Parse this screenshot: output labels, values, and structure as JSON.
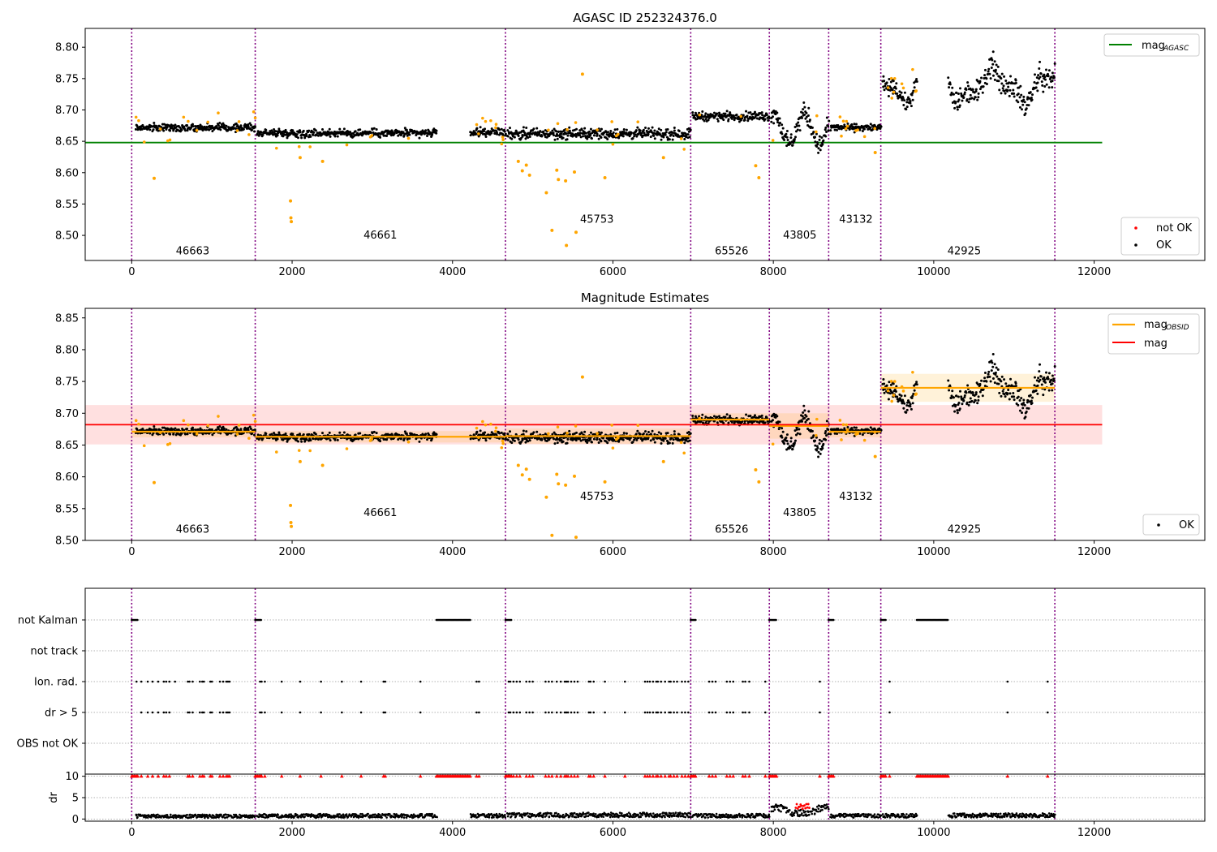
{
  "chart_data": [
    {
      "type": "scatter",
      "title": "AGASC ID 252324376.0",
      "xlim": [
        -580,
        13380
      ],
      "ylim": [
        8.46,
        8.83
      ],
      "xticks": [
        0,
        2000,
        4000,
        6000,
        8000,
        10000,
        12000
      ],
      "yticks": [
        "8.80",
        "8.75",
        "8.70",
        "8.65",
        "8.60",
        "8.55",
        "8.50"
      ],
      "obsid_boundaries": [
        0,
        1540,
        4660,
        6970,
        7950,
        8690,
        9340,
        11510
      ],
      "obsids": [
        {
          "id": "46663",
          "x": 760,
          "y": 8.47
        },
        {
          "id": "46661",
          "x": 3100,
          "y": 8.495
        },
        {
          "id": "45753",
          "x": 5800,
          "y": 8.52
        },
        {
          "id": "65526",
          "x": 7480,
          "y": 8.47
        },
        {
          "id": "43805",
          "x": 8330,
          "y": 8.495
        },
        {
          "id": "43132",
          "x": 9030,
          "y": 8.52
        },
        {
          "id": "42925",
          "x": 10380,
          "y": 8.47
        }
      ],
      "mag_agasc": {
        "value": 8.648,
        "x": [
          -580,
          12100
        ],
        "color": "#008000"
      },
      "obs_segments": [
        {
          "x": [
            50,
            1540
          ],
          "level": 8.672,
          "amp": 0.008
        },
        {
          "x": [
            1560,
            3800
          ],
          "level": 8.663,
          "amp": 0.009
        },
        {
          "x": [
            4220,
            4660
          ],
          "level": 8.665,
          "amp": 0.009
        },
        {
          "x": [
            4680,
            6970
          ],
          "level": 8.662,
          "amp": 0.012
        },
        {
          "x": [
            6990,
            7950
          ],
          "level": 8.69,
          "amp": 0.01
        },
        {
          "x": [
            7970,
            8690
          ],
          "level": 8.675,
          "amp": 0.022
        },
        {
          "x": [
            8710,
            9340
          ],
          "level": 8.672,
          "amp": 0.008
        },
        {
          "x": [
            9360,
            9790
          ],
          "level": 8.74,
          "amp": 0.018
        },
        {
          "x": [
            10180,
            11510
          ],
          "level": 8.74,
          "amp": 0.028
        }
      ],
      "outliers": [
        {
          "x": 280,
          "y": 8.591
        },
        {
          "x": 1980,
          "y": 8.555
        },
        {
          "x": 1985,
          "y": 8.528
        },
        {
          "x": 1990,
          "y": 8.522
        },
        {
          "x": 2100,
          "y": 8.624
        },
        {
          "x": 2380,
          "y": 8.618
        },
        {
          "x": 4820,
          "y": 8.618
        },
        {
          "x": 4870,
          "y": 8.603
        },
        {
          "x": 4920,
          "y": 8.612
        },
        {
          "x": 4960,
          "y": 8.596
        },
        {
          "x": 5170,
          "y": 8.568
        },
        {
          "x": 5240,
          "y": 8.508
        },
        {
          "x": 5300,
          "y": 8.604
        },
        {
          "x": 5320,
          "y": 8.589
        },
        {
          "x": 5410,
          "y": 8.587
        },
        {
          "x": 5420,
          "y": 8.484
        },
        {
          "x": 5520,
          "y": 8.601
        },
        {
          "x": 5540,
          "y": 8.505
        },
        {
          "x": 5620,
          "y": 8.757
        },
        {
          "x": 5900,
          "y": 8.592
        },
        {
          "x": 6630,
          "y": 8.624
        },
        {
          "x": 7780,
          "y": 8.611
        },
        {
          "x": 7820,
          "y": 8.592
        },
        {
          "x": 9270,
          "y": 8.632
        }
      ],
      "legend_upper": [
        {
          "label": "mag",
          "sub": "AGASC",
          "color": "#008000"
        }
      ],
      "legend_lower": [
        {
          "label": "not OK",
          "color": "#ff0000"
        },
        {
          "label": "OK",
          "color": "#000000"
        }
      ]
    },
    {
      "type": "scatter",
      "title": "Magnitude Estimates",
      "xlim": [
        -580,
        13380
      ],
      "ylim": [
        8.5,
        8.865
      ],
      "xticks": [
        0,
        2000,
        4000,
        6000,
        8000,
        10000,
        12000
      ],
      "yticks": [
        "8.85",
        "8.80",
        "8.75",
        "8.70",
        "8.65",
        "8.60",
        "8.55",
        "8.50"
      ],
      "obsids": [
        {
          "id": "46663",
          "x": 760,
          "y": 8.512
        },
        {
          "id": "46661",
          "x": 3100,
          "y": 8.538
        },
        {
          "id": "45753",
          "x": 5800,
          "y": 8.564
        },
        {
          "id": "65526",
          "x": 7480,
          "y": 8.512
        },
        {
          "id": "43805",
          "x": 8330,
          "y": 8.538
        },
        {
          "id": "43132",
          "x": 9030,
          "y": 8.564
        },
        {
          "id": "42925",
          "x": 10380,
          "y": 8.512
        }
      ],
      "mag": {
        "value": 8.682,
        "band": [
          8.651,
          8.713
        ],
        "x": [
          -580,
          12100
        ],
        "color": "#ff0000"
      },
      "mag_obsid": [
        {
          "x": [
            0,
            1540
          ],
          "value": 8.671,
          "band": [
            8.662,
            8.68
          ]
        },
        {
          "x": [
            1540,
            4660
          ],
          "value": 8.663,
          "band": [
            8.654,
            8.672
          ]
        },
        {
          "x": [
            4660,
            6970
          ],
          "value": 8.664,
          "band": [
            8.652,
            8.676
          ]
        },
        {
          "x": [
            6970,
            7950
          ],
          "value": 8.69,
          "band": [
            8.68,
            8.7
          ]
        },
        {
          "x": [
            7950,
            8690
          ],
          "value": 8.68,
          "band": [
            8.66,
            8.7
          ]
        },
        {
          "x": [
            8690,
            9340
          ],
          "value": 8.671,
          "band": [
            8.662,
            8.68
          ]
        },
        {
          "x": [
            9340,
            11510
          ],
          "value": 8.74,
          "band": [
            8.718,
            8.762
          ]
        }
      ],
      "legend_upper": [
        {
          "label": "mag",
          "sub": "OBSID",
          "color": "#ffa500"
        },
        {
          "label": "mag",
          "sub": "",
          "color": "#ff0000"
        }
      ],
      "legend_lower": [
        {
          "label": "OK",
          "color": "#000000"
        }
      ]
    },
    {
      "type": "scatter",
      "title": "",
      "xlim": [
        -580,
        13380
      ],
      "flag_rows": [
        "not Kalman",
        "not track",
        "Ion. rad.",
        "dr > 5",
        "OBS not OK"
      ],
      "not_kalman_x": [
        [
          0,
          80
        ],
        [
          1540,
          1620
        ],
        [
          3800,
          4220
        ],
        [
          4660,
          4740
        ],
        [
          6970,
          7030
        ],
        [
          7950,
          8040
        ],
        [
          8690,
          8760
        ],
        [
          9340,
          9410
        ],
        [
          9790,
          10180
        ]
      ],
      "ion_rad_x": [
        60,
        120,
        200,
        260,
        330,
        400,
        430,
        470,
        540,
        700,
        720,
        760,
        850,
        880,
        900,
        980,
        1000,
        1100,
        1140,
        1180,
        1200,
        1220,
        1600,
        1620,
        1660,
        1870,
        2100,
        2360,
        2620,
        2860,
        3140,
        3160,
        3600,
        4300,
        4330,
        4700,
        4720,
        4760,
        4800,
        4840,
        4920,
        4960,
        5000,
        5160,
        5200,
        5240,
        5300,
        5350,
        5400,
        5420,
        5440,
        5480,
        5520,
        5560,
        5700,
        5720,
        5760,
        5900,
        6150,
        6400,
        6430,
        6460,
        6500,
        6540,
        6560,
        6600,
        6650,
        6700,
        6720,
        6760,
        6800,
        6860,
        6900,
        6940,
        7200,
        7240,
        7280,
        7420,
        7460,
        7500,
        7620,
        7650,
        7700,
        7900,
        8580,
        9450,
        10920,
        11420
      ],
      "dr_x": [
        120,
        200,
        260,
        330,
        400,
        430,
        470,
        700,
        720,
        760,
        850,
        880,
        900,
        980,
        1000,
        1100,
        1140,
        1180,
        1200,
        1220,
        1600,
        1620,
        1660,
        1870,
        2100,
        2360,
        2620,
        2860,
        3140,
        3160,
        3600,
        4300,
        4330,
        4700,
        4720,
        4760,
        4800,
        4840,
        4920,
        4960,
        5000,
        5160,
        5200,
        5240,
        5300,
        5350,
        5400,
        5420,
        5440,
        5480,
        5520,
        5560,
        5700,
        5720,
        5760,
        5900,
        6150,
        6400,
        6430,
        6460,
        6500,
        6540,
        6560,
        6600,
        6650,
        6700,
        6720,
        6760,
        6800,
        6860,
        6900,
        6940,
        7200,
        7240,
        7280,
        7420,
        7460,
        7500,
        7620,
        7650,
        7700,
        7900,
        8580,
        9450,
        10920,
        11420
      ],
      "dr_ylim": [
        -0.5,
        10.5
      ],
      "dr_yticks": [
        "10",
        "5",
        "0"
      ],
      "ylabel": "dr",
      "dr_segments": [
        {
          "x": [
            50,
            1540
          ],
          "level": 0.7
        },
        {
          "x": [
            1560,
            3800
          ],
          "level": 0.8
        },
        {
          "x": [
            4220,
            4660
          ],
          "level": 0.8
        },
        {
          "x": [
            4680,
            6970
          ],
          "level": 1.0
        },
        {
          "x": [
            6990,
            7950
          ],
          "level": 0.8
        },
        {
          "x": [
            7970,
            8690
          ],
          "level": 1.6
        },
        {
          "x": [
            8710,
            9340
          ],
          "level": 0.8
        },
        {
          "x": [
            9360,
            9790
          ],
          "level": 0.8
        },
        {
          "x": [
            10180,
            11510
          ],
          "level": 0.9
        }
      ]
    }
  ]
}
